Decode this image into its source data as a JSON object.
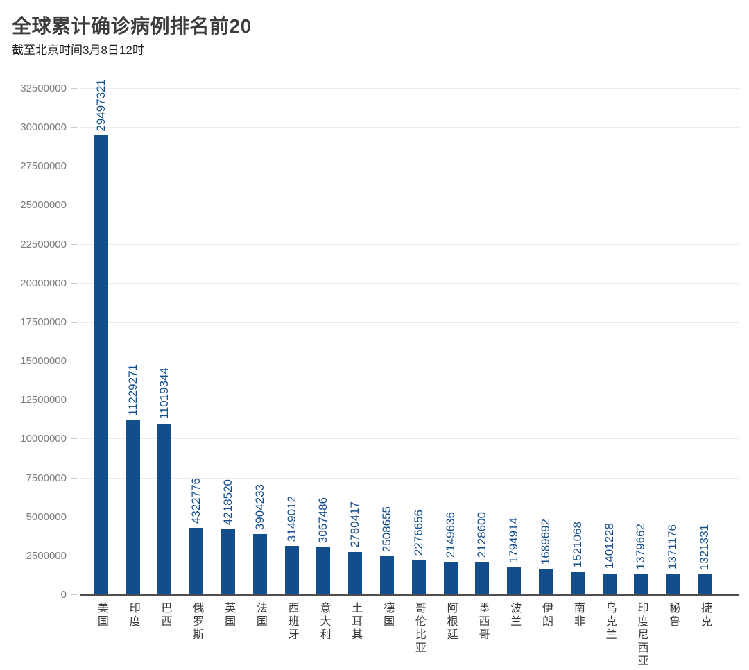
{
  "page": {
    "title": "全球累计确诊病例排名前20",
    "subtitle": "截至北京时间3月8日12时"
  },
  "colors": {
    "bar": "#134d8c",
    "value_label": "#134d8c",
    "gridline": "#ebebeb",
    "axis_line": "#4d4d4d",
    "y_tick_label": "#7d7d7d",
    "category_label": "#3a3a3a",
    "background": "#ffffff"
  },
  "chart_data": {
    "type": "bar",
    "title": "全球累计确诊病例排名前20",
    "subtitle": "截至北京时间3月8日12时",
    "categories": [
      "美国",
      "印度",
      "巴西",
      "俄罗斯",
      "英国",
      "法国",
      "西班牙",
      "意大利",
      "土耳其",
      "德国",
      "哥伦比亚",
      "阿根廷",
      "墨西哥",
      "波兰",
      "伊朗",
      "南非",
      "乌克兰",
      "印度尼西亚",
      "秘鲁",
      "捷克"
    ],
    "values": [
      29497321,
      11229271,
      11019344,
      4322776,
      4218520,
      3904233,
      3149012,
      3067486,
      2780417,
      2508655,
      2276656,
      2149636,
      2128600,
      1794914,
      1689692,
      1521068,
      1401228,
      1379662,
      1371176,
      1321331
    ],
    "xlabel": "",
    "ylabel": "",
    "ylim": [
      0,
      32500000
    ],
    "yticks": [
      0,
      2500000,
      5000000,
      7500000,
      10000000,
      12500000,
      15000000,
      17500000,
      20000000,
      22500000,
      25000000,
      27500000,
      30000000,
      32500000
    ],
    "grid": "horizontal",
    "legend": "none",
    "bar_color": "#134d8c",
    "value_label_style": "rotated-vertical-above-bar",
    "category_label_style": "vertical-upright"
  }
}
